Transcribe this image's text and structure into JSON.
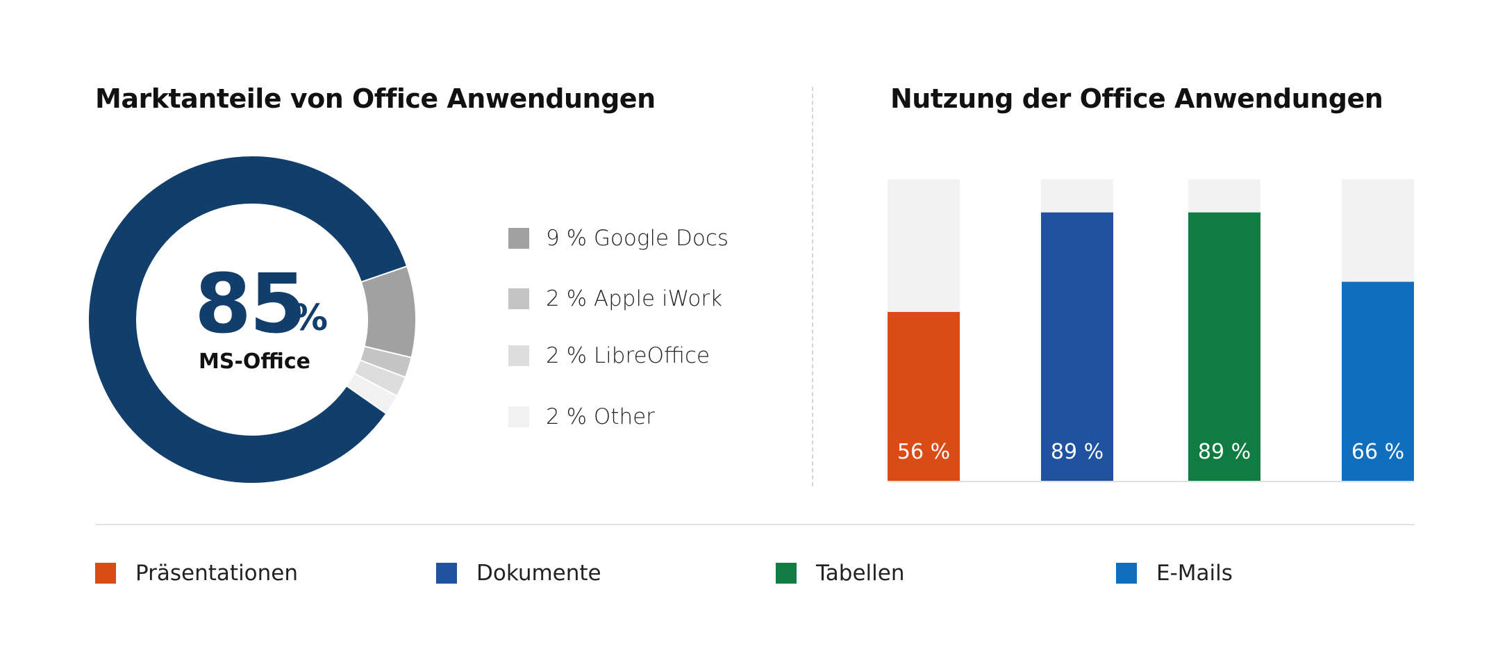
{
  "chart_data": [
    {
      "type": "pie",
      "title": "Marktanteile von Office Anwendungen",
      "center": {
        "value": "85",
        "unit": "%",
        "label": "MS-Office"
      },
      "slices": [
        {
          "name": "MS-Office",
          "value": 85,
          "color": "#123e6c"
        },
        {
          "name": "Google Docs",
          "value": 9,
          "color": "#a1a1a1",
          "label": "9 % Google Docs"
        },
        {
          "name": "Apple iWork",
          "value": 2,
          "color": "#c4c4c4",
          "label": "2 % Apple iWork"
        },
        {
          "name": "LibreOffice",
          "value": 2,
          "color": "#dddddd",
          "label": "2 % LibreOffice"
        },
        {
          "name": "Other",
          "value": 2,
          "color": "#f1f1f1",
          "label": "2 % Other"
        }
      ]
    },
    {
      "type": "bar",
      "title": "Nutzung der Office Anwendungen",
      "categories": [
        "Präsentationen",
        "Dokumente",
        "Tabellen",
        "E-Mails"
      ],
      "values": [
        56,
        89,
        89,
        66
      ],
      "labels": [
        "56 %",
        "89 %",
        "89 %",
        "66 %"
      ],
      "colors": [
        "#db4b16",
        "#1f53a0",
        "#107c41",
        "#106ebe"
      ],
      "track_color": "#f2f2f2",
      "ylim": [
        0,
        100
      ]
    }
  ]
}
